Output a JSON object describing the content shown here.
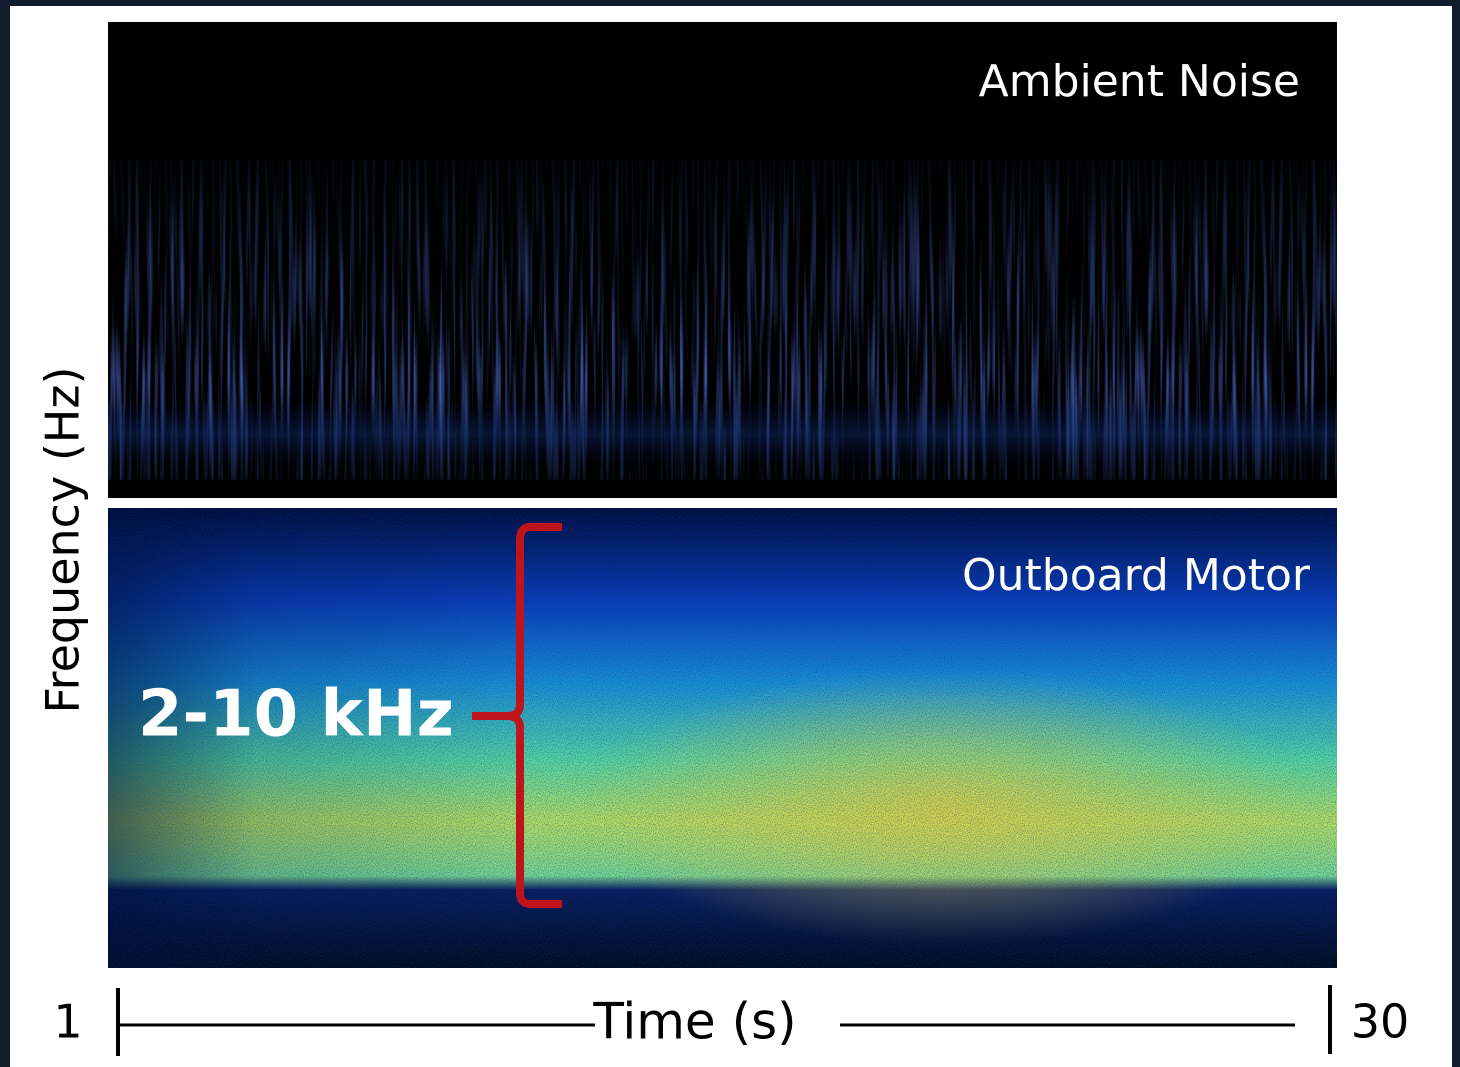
{
  "panels": [
    {
      "label": "Ambient Noise"
    },
    {
      "label": "Outboard Motor"
    }
  ],
  "annotation": "2-10 kHz",
  "y_axis_label": "Frequency (Hz)",
  "x_axis": {
    "label": "Time (s)",
    "start": "1",
    "end": "30"
  }
}
